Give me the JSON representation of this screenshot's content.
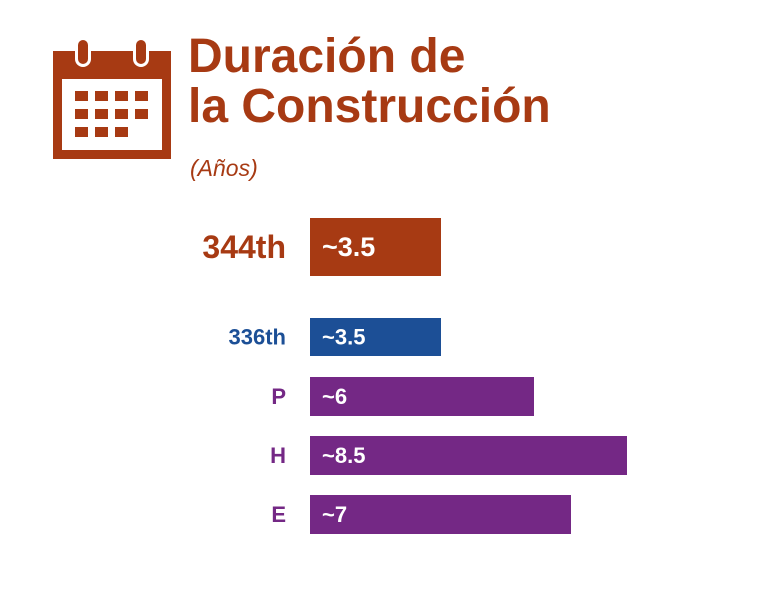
{
  "title": {
    "line1": "Duración de",
    "line2": "la Construcción",
    "subtitle": "(Años)"
  },
  "icon": "calendar-icon",
  "colors": {
    "accent": "#a73a13",
    "blue": "#1c4f96",
    "purple": "#742885",
    "label_text": "#ffffff"
  },
  "chart_data": {
    "type": "bar",
    "orientation": "horizontal",
    "title": "Duración de la Construcción",
    "subtitle": "(Años)",
    "categories": [
      "344th",
      "336th",
      "P",
      "H",
      "E"
    ],
    "values": [
      3.5,
      3.5,
      6,
      8.5,
      7
    ],
    "labels": [
      "~3.5",
      "~3.5",
      "~6",
      "~8.5",
      "~7"
    ],
    "colors": [
      "#a73a13",
      "#1c4f96",
      "#742885",
      "#742885",
      "#742885"
    ],
    "xlim": [
      0,
      8.5
    ],
    "grid": false,
    "axes_visible": false
  }
}
